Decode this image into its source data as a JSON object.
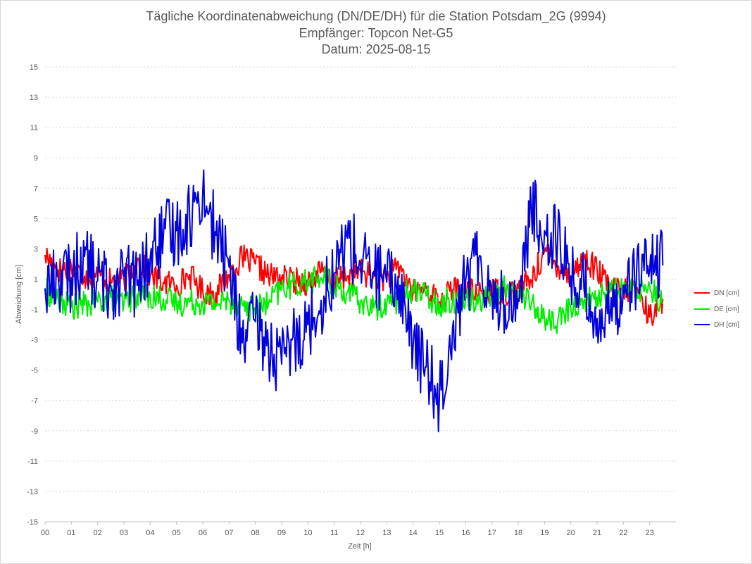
{
  "chart_data": {
    "type": "line",
    "title": "Tägliche Koordinatenabweichung (DN/DE/DH) für die Station Potsdam_2G (9994)",
    "subtitle_1": "Empfänger: Topcon Net-G5",
    "subtitle_2": "Datum: 2025-08-15",
    "xlabel": "Zeit [h]",
    "ylabel": "Abweichung [cm]",
    "xlim": [
      0,
      24
    ],
    "ylim": [
      -15,
      15
    ],
    "x_ticks": [
      "00",
      "01",
      "02",
      "03",
      "04",
      "05",
      "06",
      "07",
      "08",
      "09",
      "10",
      "11",
      "12",
      "13",
      "14",
      "15",
      "16",
      "17",
      "18",
      "19",
      "20",
      "21",
      "22",
      "23"
    ],
    "y_ticks": [
      "15",
      "13",
      "11",
      "9",
      "7",
      "5",
      "3",
      "1",
      "-1",
      "-3",
      "-5",
      "-7",
      "-9",
      "-11",
      "-13",
      "-15"
    ],
    "grid": true,
    "legend_position": "right",
    "series": [
      {
        "name": "DN [cm]",
        "color": "#ff0000",
        "x": [
          0,
          0.5,
          1,
          1.5,
          2,
          2.5,
          3,
          3.5,
          4,
          4.5,
          5,
          5.5,
          6,
          6.5,
          7,
          7.5,
          8,
          8.5,
          9,
          9.5,
          10,
          10.5,
          11,
          11.5,
          12,
          12.5,
          13,
          13.5,
          14,
          14.5,
          15,
          15.5,
          16,
          16.5,
          17,
          17.5,
          18,
          18.5,
          19,
          19.5,
          20,
          20.5,
          21,
          21.5,
          22,
          22.5,
          23,
          23.5
        ],
        "values": [
          2.6,
          1.6,
          1.8,
          1.2,
          1.3,
          0.8,
          1.0,
          2.2,
          1.3,
          0.8,
          0.6,
          1.3,
          0.2,
          0.1,
          1.3,
          2.4,
          2.0,
          1.2,
          1.1,
          0.9,
          0.8,
          1.5,
          0.8,
          1.2,
          1.5,
          1.2,
          1.1,
          1.8,
          0.1,
          0.4,
          -0.5,
          0.3,
          0.2,
          0.0,
          0.3,
          0.1,
          0.4,
          0.9,
          2.8,
          1.9,
          1.2,
          2.4,
          1.6,
          0.4,
          0.2,
          0.5,
          -1.5,
          -0.3
        ]
      },
      {
        "name": "DE [cm]",
        "color": "#00ee00",
        "x": [
          0,
          0.5,
          1,
          1.5,
          2,
          2.5,
          3,
          3.5,
          4,
          4.5,
          5,
          5.5,
          6,
          6.5,
          7,
          7.5,
          8,
          8.5,
          9,
          9.5,
          10,
          10.5,
          11,
          11.5,
          12,
          12.5,
          13,
          13.5,
          14,
          14.5,
          15,
          15.5,
          16,
          16.5,
          17,
          17.5,
          18,
          18.5,
          19,
          19.5,
          20,
          20.5,
          21,
          21.5,
          22,
          22.5,
          23,
          23.5
        ],
        "values": [
          0.3,
          -0.4,
          -0.8,
          -0.7,
          -0.5,
          -0.2,
          -0.6,
          0.0,
          -0.1,
          -0.3,
          -0.6,
          -0.5,
          -0.5,
          -0.6,
          -0.4,
          -0.7,
          -1.0,
          -0.6,
          0.4,
          0.6,
          0.9,
          1.1,
          0.6,
          0.1,
          -0.5,
          -0.9,
          -0.6,
          -0.3,
          0.4,
          -0.1,
          -0.6,
          -0.4,
          -0.2,
          -0.3,
          -0.1,
          0.4,
          0.2,
          -0.6,
          -1.6,
          -1.8,
          -0.9,
          -0.4,
          -0.2,
          0.2,
          0.3,
          0.3,
          0.6,
          -0.6
        ]
      },
      {
        "name": "DH [cm]",
        "color": "#0000dd",
        "x": [
          0,
          0.5,
          1,
          1.5,
          2,
          2.5,
          3,
          3.5,
          4,
          4.5,
          5,
          5.5,
          6,
          6.5,
          7,
          7.5,
          8,
          8.5,
          9,
          9.5,
          10,
          10.5,
          11,
          11.5,
          12,
          12.5,
          13,
          13.5,
          14,
          14.5,
          15,
          15.5,
          16,
          16.5,
          17,
          17.5,
          18,
          18.5,
          19,
          19.5,
          20,
          20.5,
          21,
          21.5,
          22,
          22.5,
          23,
          23.5
        ],
        "values": [
          0.4,
          1.2,
          1.1,
          2.5,
          0.9,
          0.5,
          1.2,
          0.6,
          2.4,
          3.8,
          4.2,
          5.1,
          6.8,
          3.9,
          1.8,
          -3.2,
          -1.8,
          -3.6,
          -4.6,
          -2.9,
          -2.0,
          -0.4,
          1.4,
          3.7,
          2.1,
          1.5,
          0.8,
          0.6,
          -3.4,
          -4.8,
          -6.8,
          -2.2,
          0.9,
          2.4,
          0.1,
          -0.7,
          -0.3,
          5.6,
          4.2,
          3.8,
          1.2,
          0.4,
          -1.6,
          -1.4,
          0.6,
          1.4,
          1.6,
          1.9
        ]
      }
    ]
  }
}
